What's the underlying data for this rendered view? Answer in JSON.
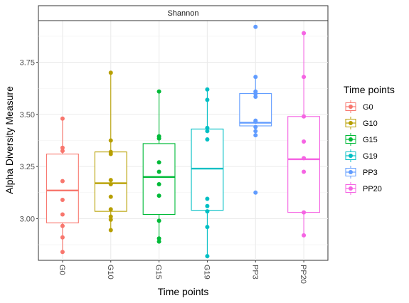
{
  "chart_data": {
    "type": "box",
    "title": "Shannon",
    "xlabel": "Time points",
    "ylabel": "Alpha Diversity Measure",
    "ylim": [
      2.8,
      3.95
    ],
    "yticks": [
      3.0,
      3.25,
      3.5,
      3.75
    ],
    "ytick_labels": [
      "3.00",
      "3.25",
      "3.50",
      "3.75"
    ],
    "grid": true,
    "legend": {
      "title": "Time points",
      "position": "right"
    },
    "categories": [
      "G0",
      "G10",
      "G15",
      "G19",
      "PP3",
      "PP20"
    ],
    "series": [
      {
        "name": "G0",
        "color": "#F8766D",
        "box": {
          "q1": 2.98,
          "median": 3.135,
          "q3": 3.31,
          "min": 2.84,
          "max": 3.48
        },
        "points": [
          2.84,
          2.91,
          2.965,
          3.02,
          3.09,
          3.18,
          3.325,
          3.34,
          3.48
        ]
      },
      {
        "name": "G10",
        "color": "#B79F00",
        "box": {
          "q1": 3.035,
          "median": 3.17,
          "q3": 3.32,
          "min": 2.945,
          "max": 3.7
        },
        "points": [
          2.945,
          2.995,
          3.01,
          3.045,
          3.105,
          3.165,
          3.185,
          3.31,
          3.32,
          3.375,
          3.7
        ]
      },
      {
        "name": "G15",
        "color": "#00BA38",
        "box": {
          "q1": 3.02,
          "median": 3.2,
          "q3": 3.36,
          "min": 2.89,
          "max": 3.61
        },
        "points": [
          2.89,
          2.905,
          2.99,
          3.11,
          3.165,
          3.225,
          3.27,
          3.385,
          3.395,
          3.61
        ]
      },
      {
        "name": "G19",
        "color": "#00BFC4",
        "box": {
          "q1": 3.04,
          "median": 3.24,
          "q3": 3.43,
          "min": 2.82,
          "max": 3.62
        },
        "points": [
          2.82,
          2.96,
          3.035,
          3.06,
          3.095,
          3.38,
          3.42,
          3.435,
          3.57,
          3.62
        ]
      },
      {
        "name": "PP3",
        "color": "#619CFF",
        "box": {
          "q1": 3.445,
          "median": 3.46,
          "q3": 3.6,
          "min": 3.4,
          "max": 3.68
        },
        "points": [
          3.125,
          3.4,
          3.42,
          3.44,
          3.465,
          3.47,
          3.585,
          3.6,
          3.61,
          3.68,
          3.92
        ]
      },
      {
        "name": "PP20",
        "color": "#F564E3",
        "box": {
          "q1": 3.03,
          "median": 3.285,
          "q3": 3.49,
          "min": 2.92,
          "max": 3.89
        },
        "points": [
          2.92,
          3.03,
          3.225,
          3.29,
          3.37,
          3.49,
          3.68,
          3.89
        ]
      }
    ]
  }
}
